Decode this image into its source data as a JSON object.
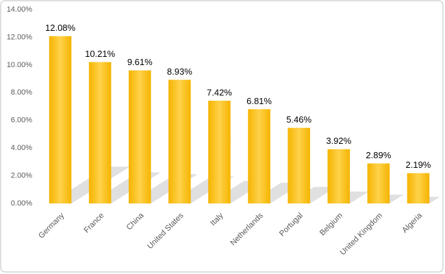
{
  "chart_data": {
    "type": "bar",
    "categories": [
      "Germany",
      "France",
      "China",
      "United States",
      "Italy",
      "Netherlands",
      "Portugal",
      "Belgium",
      "United Kingdom",
      "Algeria"
    ],
    "values": [
      12.08,
      10.21,
      9.61,
      8.93,
      7.42,
      6.81,
      5.46,
      3.92,
      2.89,
      2.19
    ],
    "value_labels": [
      "12.08%",
      "10.21%",
      "9.61%",
      "8.93%",
      "7.42%",
      "6.81%",
      "5.46%",
      "3.92%",
      "2.89%",
      "2.19%"
    ],
    "color": "#f5b400",
    "ylim": [
      0,
      14
    ],
    "yticks": [
      {
        "value": 0,
        "label": "0.00%"
      },
      {
        "value": 2,
        "label": "2.00%"
      },
      {
        "value": 4,
        "label": "4.00%"
      },
      {
        "value": 6,
        "label": "6.00%"
      },
      {
        "value": 8,
        "label": "8.00%"
      },
      {
        "value": 10,
        "label": "10.00%"
      },
      {
        "value": 12,
        "label": "12.00%"
      },
      {
        "value": 14,
        "label": "14.00%"
      }
    ],
    "grid": false
  }
}
